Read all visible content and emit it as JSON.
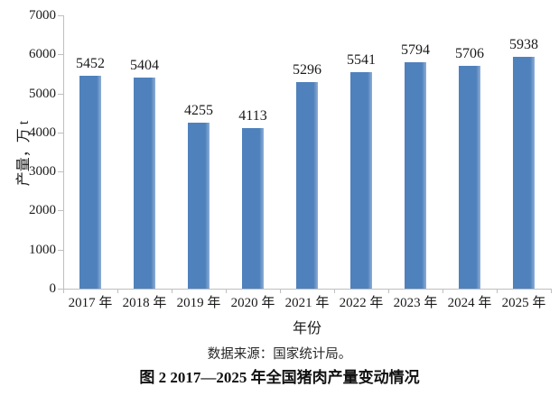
{
  "figure": {
    "caption": "图 2 2017—2025 年全国猪肉产量变动情况",
    "source_note": "数据来源：国家统计局。"
  },
  "chart_data": {
    "type": "bar",
    "title": "图 2 2017—2025 年全国猪肉产量变动情况",
    "xlabel": "年份",
    "ylabel": "产量，万 t",
    "categories": [
      "2017 年",
      "2018 年",
      "2019 年",
      "2020 年",
      "2021 年",
      "2022 年",
      "2023 年",
      "2024 年",
      "2025 年"
    ],
    "values": [
      5452,
      5404,
      4255,
      4113,
      5296,
      5541,
      5794,
      5706,
      5938
    ],
    "ylim": [
      0,
      7000
    ],
    "yticks": [
      0,
      1000,
      2000,
      3000,
      4000,
      5000,
      6000,
      7000
    ],
    "bar_color": "#4f81bd",
    "bar_highlight_color": "#8fafd4",
    "axis_color": "#bfbfbf",
    "text_color": "#1a1a1a",
    "grid": false,
    "legend": "none",
    "source": "数据来源：国家统计局。"
  }
}
